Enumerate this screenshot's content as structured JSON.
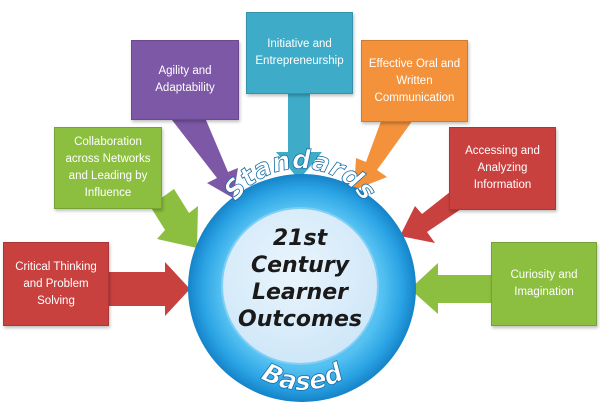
{
  "center": {
    "line1": "21st",
    "line2": "Century",
    "line3": "Learner",
    "line4": "Outcomes",
    "top_arc": "Standards",
    "bottom_arc": "Based"
  },
  "outcomes": [
    {
      "label": "Critical Thinking\nand Problem\nSolving",
      "color": "#c8413f"
    },
    {
      "label": "Collaboration\nacross Networks\nand Leading by\nInfluence",
      "color": "#8cbf3f"
    },
    {
      "label": "Agility and\nAdaptability",
      "color": "#7d58a6"
    },
    {
      "label": "Initiative and\nEntrepreneurship",
      "color": "#3eacc8"
    },
    {
      "label": "Effective Oral and\nWritten\nCommunication",
      "color": "#f3923b"
    },
    {
      "label": "Accessing and\nAnalyzing\nInformation",
      "color": "#c8413f"
    },
    {
      "label": "Curiosity and\nImagination",
      "color": "#8cbf3f"
    }
  ],
  "colors": {
    "ring_outer": "#1b8fd6",
    "ring_light": "#5ec4f2",
    "center_fill": "#d8ecfa"
  }
}
